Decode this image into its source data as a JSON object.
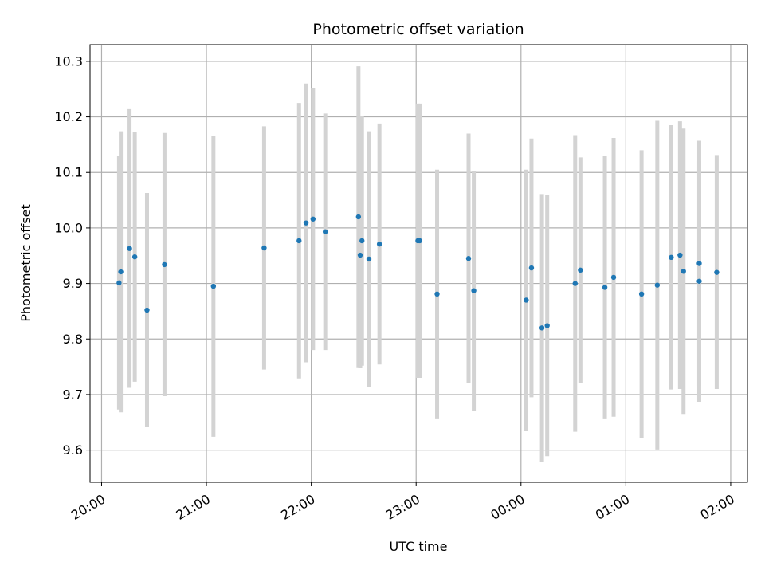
{
  "chart_data": {
    "type": "scatter",
    "title": "Photometric offset variation",
    "xlabel": "UTC time",
    "ylabel": "Photometric offset",
    "grid": true,
    "x_axis": {
      "ticks_hours": [
        20,
        21,
        22,
        23,
        24,
        25,
        26
      ],
      "tick_labels": [
        "20:00",
        "21:00",
        "22:00",
        "23:00",
        "00:00",
        "01:00",
        "02:00"
      ],
      "xlim_hours": [
        19.89,
        26.16
      ]
    },
    "y_axis": {
      "ticks": [
        9.6,
        9.7,
        9.8,
        9.9,
        10.0,
        10.1,
        10.2,
        10.3
      ],
      "tick_labels": [
        "9.6",
        "9.7",
        "9.8",
        "9.9",
        "10.0",
        "10.1",
        "10.2",
        "10.3"
      ],
      "ylim": [
        9.542,
        10.33
      ]
    },
    "colors": {
      "points": "#1f77b4",
      "errorbars": "#d3d3d3",
      "grid": "#b0b0b0"
    },
    "series": [
      {
        "points": [
          {
            "t": "20:10",
            "y": 9.901,
            "err": 0.228
          },
          {
            "t": "20:11",
            "y": 9.921,
            "err": 0.253
          },
          {
            "t": "20:16",
            "y": 9.963,
            "err": 0.251
          },
          {
            "t": "20:19",
            "y": 9.948,
            "err": 0.225
          },
          {
            "t": "20:26",
            "y": 9.852,
            "err": 0.211
          },
          {
            "t": "20:36",
            "y": 9.934,
            "err": 0.237
          },
          {
            "t": "21:04",
            "y": 9.895,
            "err": 0.271
          },
          {
            "t": "21:33",
            "y": 9.964,
            "err": 0.219
          },
          {
            "t": "21:53",
            "y": 9.977,
            "err": 0.248
          },
          {
            "t": "21:57",
            "y": 10.009,
            "err": 0.251
          },
          {
            "t": "22:01",
            "y": 10.016,
            "err": 0.236
          },
          {
            "t": "22:08",
            "y": 9.993,
            "err": 0.213
          },
          {
            "t": "22:27",
            "y": 10.02,
            "err": 0.271
          },
          {
            "t": "22:28",
            "y": 9.951,
            "err": 0.203
          },
          {
            "t": "22:29",
            "y": 9.977,
            "err": 0.225
          },
          {
            "t": "22:33",
            "y": 9.944,
            "err": 0.23
          },
          {
            "t": "22:39",
            "y": 9.971,
            "err": 0.217
          },
          {
            "t": "23:01",
            "y": 9.977,
            "err": 0.247
          },
          {
            "t": "23:02",
            "y": 9.977,
            "err": 0.247
          },
          {
            "t": "23:12",
            "y": 9.881,
            "err": 0.224
          },
          {
            "t": "23:30",
            "y": 9.945,
            "err": 0.225
          },
          {
            "t": "23:33",
            "y": 9.887,
            "err": 0.216
          },
          {
            "t": "00:03",
            "y": 9.87,
            "err": 0.235
          },
          {
            "t": "00:06",
            "y": 9.928,
            "err": 0.233
          },
          {
            "t": "00:12",
            "y": 9.82,
            "err": 0.241
          },
          {
            "t": "00:15",
            "y": 9.824,
            "err": 0.235
          },
          {
            "t": "00:31",
            "y": 9.9,
            "err": 0.267
          },
          {
            "t": "00:34",
            "y": 9.924,
            "err": 0.203
          },
          {
            "t": "00:48",
            "y": 9.893,
            "err": 0.236
          },
          {
            "t": "00:53",
            "y": 9.911,
            "err": 0.251
          },
          {
            "t": "01:09",
            "y": 9.881,
            "err": 0.259
          },
          {
            "t": "01:18",
            "y": 9.897,
            "err": 0.296
          },
          {
            "t": "01:26",
            "y": 9.947,
            "err": 0.238
          },
          {
            "t": "01:31",
            "y": 9.951,
            "err": 0.241
          },
          {
            "t": "01:33",
            "y": 9.922,
            "err": 0.257
          },
          {
            "t": "01:42",
            "y": 9.936,
            "err": 0.221
          },
          {
            "t": "01:42",
            "y": 9.904,
            "err": 0.217
          },
          {
            "t": "01:52",
            "y": 9.92,
            "err": 0.21
          }
        ]
      }
    ]
  }
}
